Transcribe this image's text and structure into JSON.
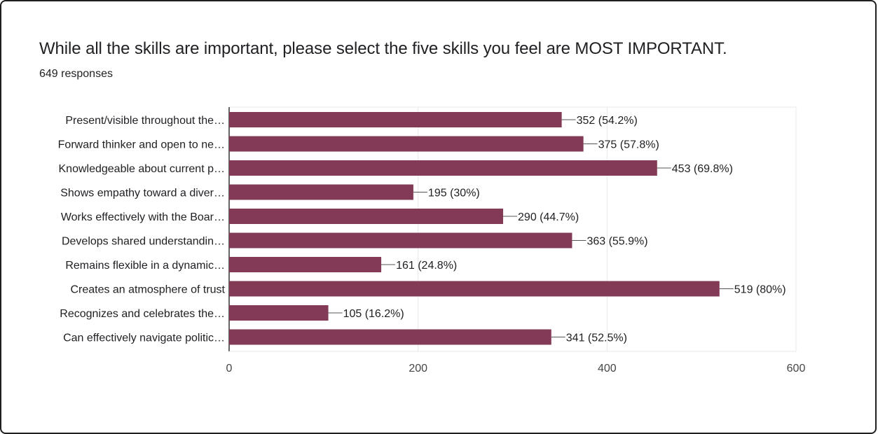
{
  "header": {
    "question": "While all the skills are important, please select the five skills you feel are MOST IMPORTANT.",
    "responses": "649 responses"
  },
  "colors": {
    "bar": "#833a56",
    "grid": "#e8e8e8",
    "axis": "#333333",
    "leader": "#555555"
  },
  "chart_data": {
    "type": "bar",
    "orientation": "horizontal",
    "categories": [
      "Present/visible throughout the…",
      "Forward thinker and open to ne…",
      "Knowledgeable about current p…",
      "Shows empathy toward a diver…",
      "Works effectively with the Boar…",
      "Develops shared understandin…",
      "Remains flexible in a dynamic…",
      "Creates an atmosphere of trust",
      "Recognizes and celebrates the…",
      "Can effectively navigate politic…"
    ],
    "values": [
      352,
      375,
      453,
      195,
      290,
      363,
      161,
      519,
      105,
      341
    ],
    "data_labels": [
      "352 (54.2%)",
      "375 (57.8%)",
      "453 (69.8%)",
      "195 (30%)",
      "290 (44.7%)",
      "363 (55.9%)",
      "161 (24.8%)",
      "519 (80%)",
      "105 (16.2%)",
      "341 (52.5%)"
    ],
    "xlim": [
      0,
      600
    ],
    "xticks": [
      0,
      200,
      400,
      600
    ],
    "xtick_labels": [
      "0",
      "200",
      "400",
      "600"
    ],
    "grid": true
  }
}
